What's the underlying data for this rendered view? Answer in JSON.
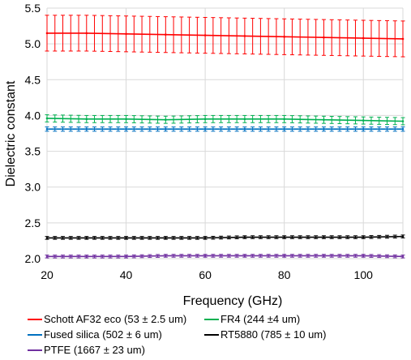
{
  "chart_data": {
    "type": "line",
    "title": "",
    "xlabel": "Frequency (GHz)",
    "ylabel": "Dielectric constant",
    "xlim": [
      20,
      110
    ],
    "ylim": [
      2.0,
      5.5
    ],
    "xticks": [
      20,
      40,
      60,
      80,
      100
    ],
    "yticks": [
      2.0,
      2.5,
      3.0,
      3.5,
      4.0,
      4.5,
      5.0,
      5.5
    ],
    "xtick_labels": [
      "20",
      "40",
      "60",
      "80",
      "100"
    ],
    "ytick_labels": [
      "2.0",
      "2.5",
      "3.0",
      "3.5",
      "4.0",
      "4.5",
      "5.0",
      "5.5"
    ],
    "grid": true,
    "legend_position": "bottom",
    "series": [
      {
        "name": "Schott AF32 eco (53 ± 2.5 um)",
        "color": "#ff0000",
        "x": [
          20,
          30,
          40,
          50,
          60,
          70,
          80,
          90,
          100,
          110
        ],
        "y": [
          5.15,
          5.15,
          5.14,
          5.13,
          5.12,
          5.11,
          5.1,
          5.09,
          5.08,
          5.07
        ],
        "error": [
          0.25,
          0.25,
          0.25,
          0.25,
          0.25,
          0.25,
          0.25,
          0.25,
          0.25,
          0.25
        ]
      },
      {
        "name": "FR4 (244 ±4 um)",
        "color": "#00b050",
        "x": [
          20,
          30,
          40,
          50,
          60,
          70,
          80,
          90,
          100,
          110
        ],
        "y": [
          3.96,
          3.95,
          3.95,
          3.94,
          3.95,
          3.95,
          3.95,
          3.94,
          3.93,
          3.92
        ],
        "error": [
          0.05,
          0.05,
          0.05,
          0.05,
          0.05,
          0.05,
          0.05,
          0.05,
          0.05,
          0.05
        ]
      },
      {
        "name": "Fused silica (502 ± 6 um)",
        "color": "#0070c0",
        "x": [
          20,
          30,
          40,
          50,
          60,
          70,
          80,
          90,
          100,
          110
        ],
        "y": [
          3.81,
          3.81,
          3.81,
          3.81,
          3.81,
          3.81,
          3.81,
          3.81,
          3.81,
          3.81
        ],
        "error": [
          0.03,
          0.03,
          0.03,
          0.03,
          0.03,
          0.03,
          0.03,
          0.03,
          0.03,
          0.03
        ]
      },
      {
        "name": "RT5880 (785 ± 10 um)",
        "color": "#000000",
        "x": [
          20,
          30,
          40,
          50,
          60,
          70,
          80,
          90,
          100,
          110
        ],
        "y": [
          2.29,
          2.29,
          2.29,
          2.29,
          2.29,
          2.3,
          2.3,
          2.3,
          2.3,
          2.31
        ],
        "error": [
          0.02,
          0.02,
          0.02,
          0.02,
          0.02,
          0.02,
          0.02,
          0.02,
          0.02,
          0.02
        ]
      },
      {
        "name": "PTFE (1667 ± 23 um)",
        "color": "#7030a0",
        "x": [
          20,
          30,
          40,
          50,
          60,
          70,
          80,
          90,
          100,
          110
        ],
        "y": [
          2.03,
          2.03,
          2.03,
          2.04,
          2.04,
          2.04,
          2.04,
          2.04,
          2.04,
          2.03
        ],
        "error": [
          0.02,
          0.02,
          0.02,
          0.02,
          0.02,
          0.02,
          0.02,
          0.02,
          0.02,
          0.02
        ]
      }
    ]
  }
}
